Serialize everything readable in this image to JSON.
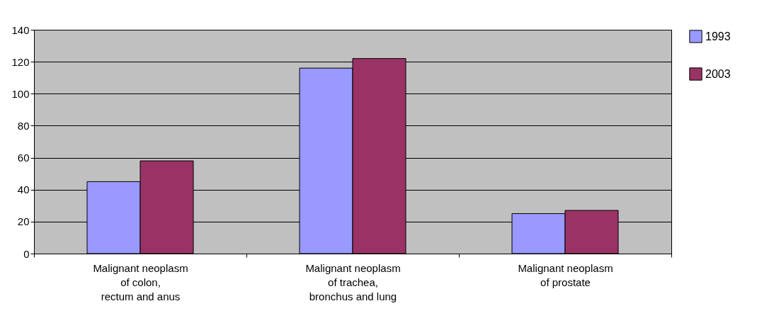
{
  "chart_data": {
    "type": "bar",
    "categories": [
      "Malignant neoplasm\nof colon,\nrectum and anus",
      "Malignant neoplasm\nof trachea,\nbronchus and lung",
      "Malignant neoplasm\nof prostate"
    ],
    "series": [
      {
        "name": "1993",
        "color": "#9999ff",
        "values": [
          45,
          116,
          25
        ]
      },
      {
        "name": "2003",
        "color": "#993366",
        "values": [
          58,
          122,
          27
        ]
      }
    ],
    "ylim": [
      0,
      140
    ],
    "yticks": [
      0,
      20,
      40,
      60,
      80,
      100,
      120,
      140
    ],
    "grid": "y",
    "legend": "right"
  }
}
